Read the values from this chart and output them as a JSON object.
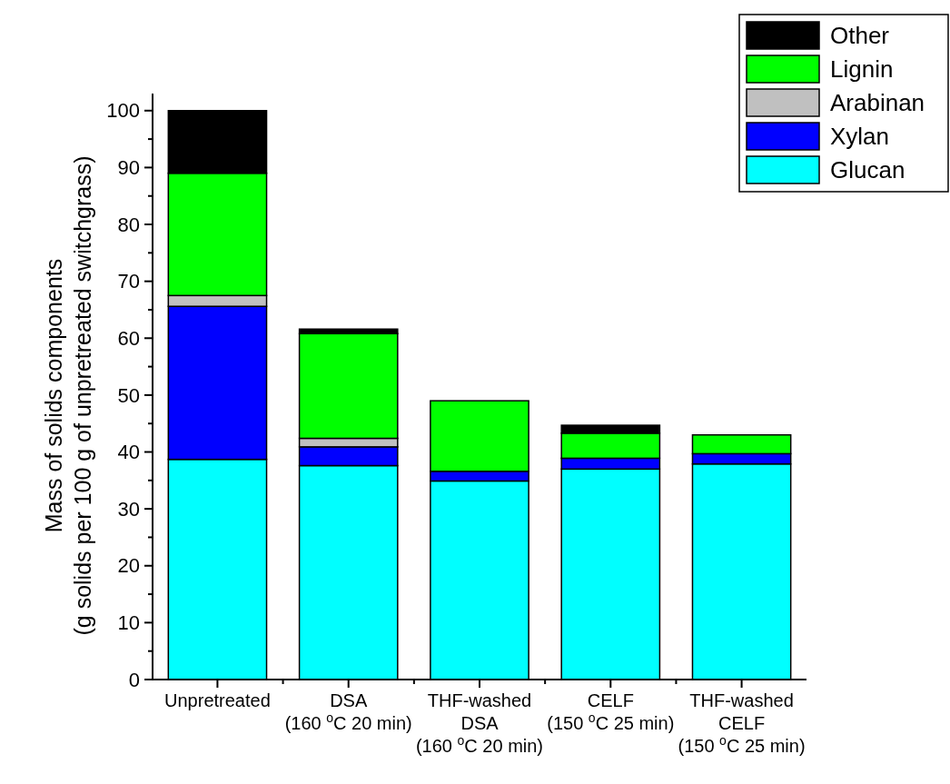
{
  "chart_data": {
    "type": "bar",
    "stacked": true,
    "ylabel": "Mass of solids components\n(g solids per 100 g of unpretreated switchgrass)",
    "categories": [
      "Unpretreated",
      "DSA\n(160 $^{o}$C 20 min)",
      "THF-washed\nDSA\n(160 $^{o}$C 20 min)",
      "CELF\n(150 $^{o}$C 25 min)",
      "THF-washed\nCELF\n(150 $^{o}$C 25 min)"
    ],
    "series": [
      {
        "name": "Glucan",
        "color": "#00ffff",
        "values": [
          38.7,
          37.6,
          34.9,
          37.0,
          37.9
        ]
      },
      {
        "name": "Xylan",
        "color": "#0000ff",
        "values": [
          26.9,
          3.3,
          1.7,
          1.9,
          1.8
        ]
      },
      {
        "name": "Arabinan",
        "color": "#c0c0c0",
        "values": [
          1.9,
          1.5,
          0,
          0,
          0
        ]
      },
      {
        "name": "Lignin",
        "color": "#00ff00",
        "values": [
          21.5,
          18.4,
          12.4,
          4.4,
          3.3
        ]
      },
      {
        "name": "Other",
        "color": "#000000",
        "values": [
          11.0,
          0.8,
          0,
          1.4,
          0
        ]
      }
    ],
    "ylim": [
      0,
      103
    ],
    "yticks": [
      0,
      {
        "value": 5,
        "label": null
      },
      10,
      {
        "value": 15,
        "label": null
      },
      20,
      {
        "value": 25,
        "label": null
      },
      30,
      {
        "value": 35,
        "label": null
      },
      40,
      {
        "value": 45,
        "label": null
      },
      50,
      {
        "value": 55,
        "label": null
      },
      60,
      {
        "value": 65,
        "label": null
      },
      70,
      {
        "value": 75,
        "label": null
      },
      80,
      {
        "value": 85,
        "label": null
      },
      90,
      {
        "value": 95,
        "label": null
      },
      100
    ],
    "grid": false,
    "legend": "top right"
  }
}
